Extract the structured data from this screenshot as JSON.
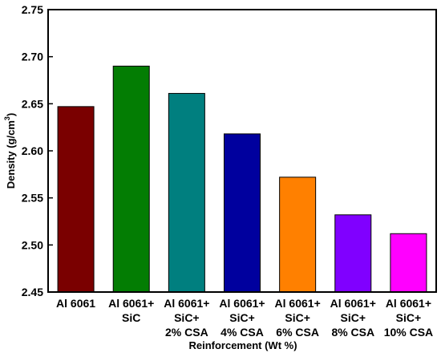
{
  "chart_data": {
    "type": "bar",
    "categories": [
      [
        "Al 6061"
      ],
      [
        "Al 6061+",
        "SiC"
      ],
      [
        "Al 6061+",
        "SiC+",
        "2% CSA"
      ],
      [
        "Al 6061+",
        "SiC+",
        "4% CSA"
      ],
      [
        "Al 6061+",
        "SiC+",
        "6% CSA"
      ],
      [
        "Al 6061+",
        "SiC+",
        "8% CSA"
      ],
      [
        "Al 6061+",
        "SiC+",
        "10% CSA"
      ]
    ],
    "values": [
      2.647,
      2.69,
      2.661,
      2.618,
      2.572,
      2.532,
      2.512
    ],
    "colors": [
      "#7a0000",
      "#037d03",
      "#007f7f",
      "#00009e",
      "#ff8000",
      "#8000ff",
      "#ff00ff"
    ],
    "title": "",
    "xlabel": "Reinforcement (Wt %)",
    "ylabel": "Density (g/cm",
    "ylabel_superscript": "3",
    "ylabel_suffix": ")",
    "ylim": [
      2.45,
      2.75
    ],
    "yticks": [
      "2.45",
      "2.50",
      "2.55",
      "2.60",
      "2.65",
      "2.70",
      "2.75"
    ],
    "grid": false,
    "legend": "none"
  }
}
